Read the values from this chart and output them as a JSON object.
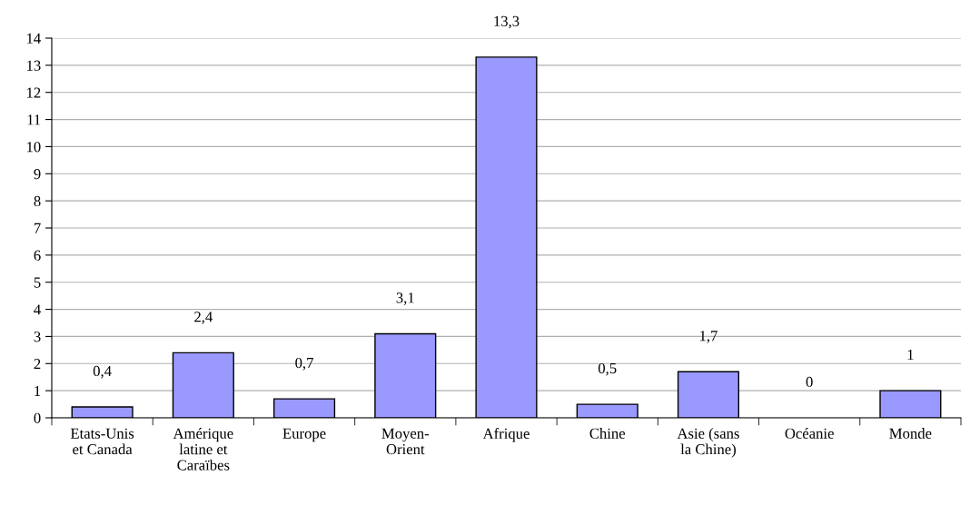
{
  "chart_data": {
    "type": "bar",
    "categories": [
      "Etats-Unis\net Canada",
      "Amérique\nlatine et\nCaraïbes",
      "Europe",
      "Moyen-\nOrient",
      "Afrique",
      "Chine",
      "Asie (sans\nla Chine)",
      "Océanie",
      "Monde"
    ],
    "values": [
      0.4,
      2.4,
      0.7,
      3.1,
      13.3,
      0.5,
      1.7,
      0,
      1
    ],
    "value_labels": [
      "0,4",
      "2,4",
      "0,7",
      "3,1",
      "13,3",
      "0,5",
      "1,7",
      "0",
      "1"
    ],
    "color": "#9999ff",
    "ylim": [
      0,
      14
    ],
    "yticks": [
      0,
      1,
      2,
      3,
      4,
      5,
      6,
      7,
      8,
      9,
      10,
      11,
      12,
      13,
      14
    ],
    "grid": "y"
  }
}
